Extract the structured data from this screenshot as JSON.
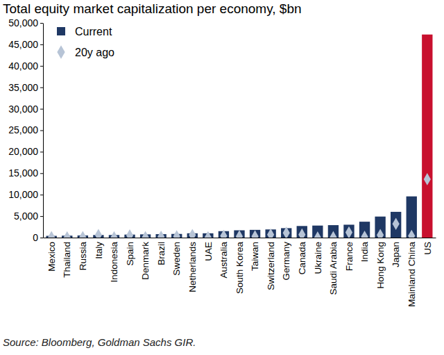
{
  "chart_data": {
    "type": "bar",
    "title": "Total equity market capitalization per economy, $bn",
    "source": "Source: Bloomberg, Goldman Sachs GIR.",
    "categories": [
      "Mexico",
      "Thailand",
      "Russia",
      "Italy",
      "Indonesia",
      "Spain",
      "Denmark",
      "Brazil",
      "Sweden",
      "Netherlands",
      "UAE",
      "Australia",
      "South Korea",
      "Taiwan",
      "Switzerland",
      "Germany",
      "Canada",
      "Ukraine",
      "Saudi Arabia",
      "France",
      "India",
      "Hong Kong",
      "Japan",
      "Mainland China",
      "US"
    ],
    "series": [
      {
        "name": "Current",
        "type": "bar",
        "colors": [
          "#1f3864",
          "#1f3864",
          "#1f3864",
          "#1f3864",
          "#1f3864",
          "#1f3864",
          "#1f3864",
          "#1f3864",
          "#1f3864",
          "#1f3864",
          "#1f3864",
          "#1f3864",
          "#1f3864",
          "#1f3864",
          "#1f3864",
          "#1f3864",
          "#1f3864",
          "#1f3864",
          "#1f3864",
          "#1f3864",
          "#1f3864",
          "#1f3864",
          "#1f3864",
          "#1f3864",
          "#c8102e"
        ],
        "values": [
          400,
          450,
          500,
          600,
          600,
          700,
          750,
          800,
          850,
          1000,
          1000,
          1500,
          1700,
          1800,
          1900,
          2200,
          2700,
          2800,
          2900,
          3000,
          3700,
          4900,
          6000,
          9600,
          47300
        ]
      },
      {
        "name": "20y ago",
        "type": "scatter",
        "marker": "diamond",
        "color": "#b7c4d6",
        "values": [
          100,
          50,
          100,
          600,
          50,
          500,
          100,
          200,
          300,
          600,
          50,
          400,
          300,
          300,
          700,
          1100,
          700,
          10,
          100,
          1200,
          200,
          600,
          3200,
          400,
          13600
        ]
      }
    ],
    "ylim": [
      0,
      50000
    ],
    "yticks": [
      0,
      {
        "value": 5000,
        "label": "5,000"
      },
      {
        "value": 10000,
        "label": "10,000"
      },
      {
        "value": 15000,
        "label": "15,000"
      },
      {
        "value": 20000,
        "label": "20,000"
      },
      {
        "value": 25000,
        "label": "25,000"
      },
      {
        "value": 30000,
        "label": "30,000"
      },
      {
        "value": 35000,
        "label": "35,000"
      },
      {
        "value": 40000,
        "label": "40,000"
      },
      {
        "value": 45000,
        "label": "45,000"
      },
      {
        "value": 50000,
        "label": "50,000"
      }
    ],
    "grid": false,
    "legend": "top-left"
  }
}
